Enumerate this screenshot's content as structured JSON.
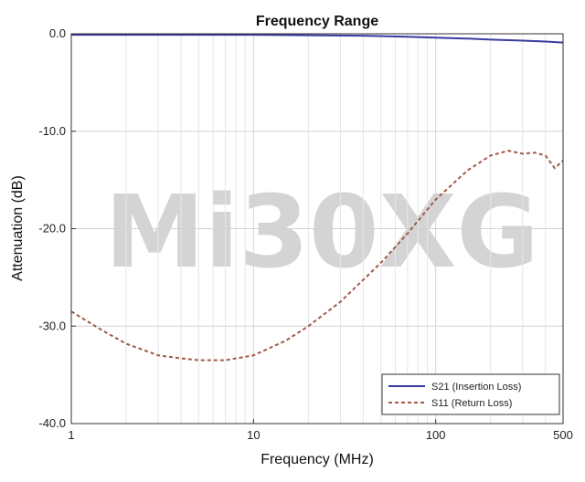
{
  "chart_data": {
    "type": "line",
    "title": "Frequency Range",
    "xlabel": "Frequency (MHz)",
    "ylabel": "Attenuation (dB)",
    "x_scale": "log",
    "xlim": [
      1,
      500
    ],
    "ylim": [
      -40,
      0
    ],
    "x_ticks": [
      1,
      10,
      100,
      500
    ],
    "x_tick_labels": [
      "1",
      "10",
      "100",
      "500"
    ],
    "y_ticks": [
      0,
      -10,
      -20,
      -30,
      -40
    ],
    "y_tick_labels": [
      "0.0",
      "-10.0",
      "-20.0",
      "-30.0",
      "-40.0"
    ],
    "grid": true,
    "legend_position": "bottom-right",
    "watermark": "Mi30XG",
    "series": [
      {
        "name": "S21 (Insertion Loss)",
        "color": "#3a3aa0",
        "dash": "solid",
        "points": [
          [
            1,
            -0.1
          ],
          [
            5,
            -0.1
          ],
          [
            10,
            -0.1
          ],
          [
            20,
            -0.15
          ],
          [
            40,
            -0.2
          ],
          [
            70,
            -0.3
          ],
          [
            100,
            -0.4
          ],
          [
            150,
            -0.5
          ],
          [
            200,
            -0.6
          ],
          [
            300,
            -0.7
          ],
          [
            400,
            -0.8
          ],
          [
            500,
            -0.9
          ]
        ]
      },
      {
        "name": "S11 (Return Loss)",
        "color": "#a05a4a",
        "dash": "dashed",
        "points": [
          [
            1,
            -28.5
          ],
          [
            1.5,
            -30.5
          ],
          [
            2,
            -31.8
          ],
          [
            3,
            -33
          ],
          [
            4,
            -33.3
          ],
          [
            5,
            -33.5
          ],
          [
            7,
            -33.5
          ],
          [
            10,
            -33
          ],
          [
            15,
            -31.5
          ],
          [
            20,
            -30
          ],
          [
            30,
            -27.5
          ],
          [
            50,
            -23.5
          ],
          [
            70,
            -20.5
          ],
          [
            100,
            -17
          ],
          [
            150,
            -14
          ],
          [
            200,
            -12.5
          ],
          [
            250,
            -12
          ],
          [
            300,
            -12.3
          ],
          [
            350,
            -12.2
          ],
          [
            400,
            -12.5
          ],
          [
            450,
            -13.8
          ],
          [
            500,
            -13
          ]
        ]
      }
    ]
  }
}
